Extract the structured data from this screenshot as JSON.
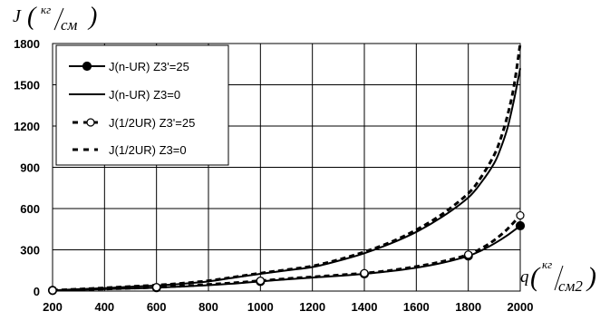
{
  "chart_data": {
    "type": "line",
    "y_axis_title": {
      "symbol": "J",
      "unit_num": "кг",
      "unit_den": "см"
    },
    "x_axis_title": {
      "symbol": "q",
      "unit_num": "кг",
      "unit_den": "см2"
    },
    "xlim": [
      200,
      2000
    ],
    "ylim": [
      0,
      1800
    ],
    "x_ticks": [
      200,
      400,
      600,
      800,
      1000,
      1200,
      1400,
      1600,
      1800,
      2000
    ],
    "y_ticks": [
      0,
      300,
      600,
      900,
      1200,
      1500,
      1800
    ],
    "grid": true,
    "legend_position": "top-left",
    "series": [
      {
        "name": "J(n-UR) Z3'=25",
        "style": "solid-filled-markers",
        "x": [
          200,
          600,
          1000,
          1400,
          1800,
          2000
        ],
        "y": [
          5,
          25,
          70,
          125,
          255,
          475
        ],
        "curve": [
          [
            200,
            5
          ],
          [
            300,
            9
          ],
          [
            400,
            14
          ],
          [
            500,
            19
          ],
          [
            600,
            25
          ],
          [
            700,
            33
          ],
          [
            800,
            43
          ],
          [
            900,
            55
          ],
          [
            1000,
            70
          ],
          [
            1100,
            85
          ],
          [
            1200,
            98
          ],
          [
            1300,
            110
          ],
          [
            1400,
            125
          ],
          [
            1500,
            145
          ],
          [
            1600,
            170
          ],
          [
            1700,
            205
          ],
          [
            1800,
            255
          ],
          [
            1850,
            295
          ],
          [
            1900,
            345
          ],
          [
            1950,
            405
          ],
          [
            2000,
            475
          ]
        ]
      },
      {
        "name": "J(n-UR)  Z3=0",
        "style": "solid",
        "x": [
          200,
          300,
          400,
          500,
          600,
          700,
          800,
          900,
          1000,
          1100,
          1200,
          1300,
          1400,
          1500,
          1600,
          1700,
          1800,
          1850,
          1900,
          1925,
          1950,
          1975,
          2000
        ],
        "y": [
          5,
          14,
          22,
          31,
          40,
          53,
          70,
          98,
          125,
          150,
          175,
          220,
          275,
          345,
          430,
          540,
          680,
          790,
          930,
          1040,
          1180,
          1380,
          1620
        ]
      },
      {
        "name": "J(1/2UR) Z3'=25",
        "style": "dashed-open-markers",
        "x": [
          200,
          600,
          1000,
          1400,
          1800,
          2000
        ],
        "y": [
          5,
          28,
          75,
          130,
          265,
          550
        ],
        "curve": [
          [
            200,
            5
          ],
          [
            300,
            10
          ],
          [
            400,
            15
          ],
          [
            500,
            21
          ],
          [
            600,
            28
          ],
          [
            700,
            37
          ],
          [
            800,
            48
          ],
          [
            900,
            60
          ],
          [
            1000,
            75
          ],
          [
            1100,
            90
          ],
          [
            1200,
            103
          ],
          [
            1300,
            116
          ],
          [
            1400,
            130
          ],
          [
            1500,
            150
          ],
          [
            1600,
            178
          ],
          [
            1700,
            215
          ],
          [
            1800,
            265
          ],
          [
            1850,
            310
          ],
          [
            1900,
            370
          ],
          [
            1950,
            450
          ],
          [
            2000,
            550
          ]
        ]
      },
      {
        "name": "J(1/2UR) Z3=0",
        "style": "dashed",
        "x": [
          200,
          300,
          400,
          500,
          600,
          700,
          800,
          900,
          1000,
          1100,
          1200,
          1300,
          1400,
          1500,
          1600,
          1700,
          1800,
          1850,
          1900,
          1925,
          1950,
          1975,
          2000
        ],
        "y": [
          5,
          14,
          23,
          33,
          43,
          57,
          75,
          102,
          130,
          155,
          182,
          228,
          285,
          355,
          445,
          560,
          710,
          830,
          990,
          1110,
          1270,
          1480,
          1800
        ]
      }
    ]
  }
}
